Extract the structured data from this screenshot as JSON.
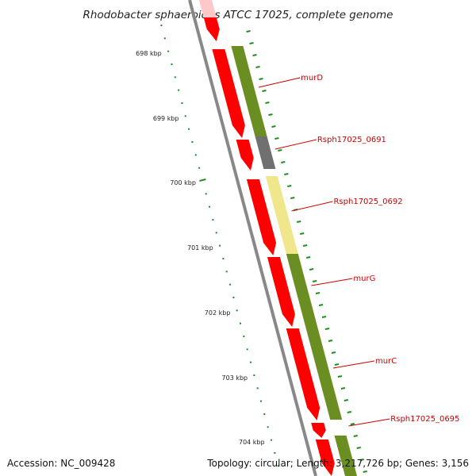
{
  "title": "Rhodobacter sphaeroides ATCC 17025, complete genome",
  "footer": {
    "accession": "Accession: NC_009428",
    "summary": "Topology: circular; Length: 3,217,726 bp; Genes: 3,156"
  },
  "kbp_labels": [
    "698 kbp",
    "699 kbp",
    "700 kbp",
    "701 kbp",
    "702 kbp",
    "703 kbp",
    "704 kbp"
  ],
  "colors": {
    "backbone": "#888888",
    "cds": "#ff0000",
    "cds_faded": "#ffc8c8",
    "cog_green": "#6b8e23",
    "cog_gray": "#707070",
    "cog_yellow": "#f0e68c",
    "tick": "#228b22",
    "label": "#cc0000"
  },
  "genes": [
    {
      "label": "murD"
    },
    {
      "label": "Rsph17025_0691"
    },
    {
      "label": "Rsph17025_0692"
    },
    {
      "label": "murG"
    },
    {
      "label": "murC"
    },
    {
      "label": "Rsph17025_0695"
    }
  ]
}
